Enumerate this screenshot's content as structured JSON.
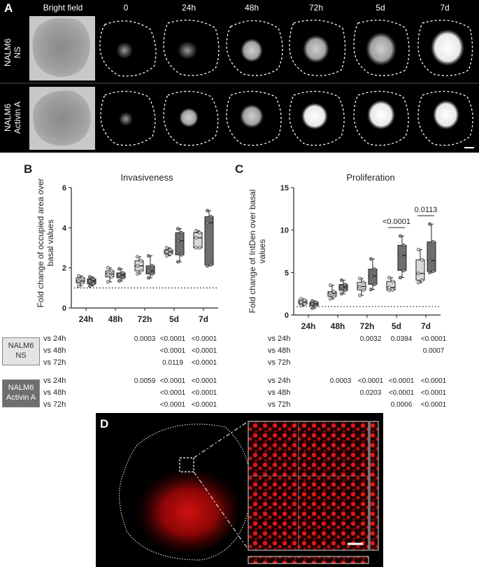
{
  "panelA": {
    "letter": "A",
    "columns": [
      "Bright field",
      "0",
      "24h",
      "48h",
      "72h",
      "5d",
      "7d"
    ],
    "rows": [
      {
        "line1": "NALM6",
        "line2": "NS"
      },
      {
        "line1": "NALM6",
        "line2": "Activin A"
      }
    ]
  },
  "panelB": {
    "letter": "B",
    "chart_data": {
      "type": "box",
      "title": "Invasiveness",
      "ylabel": "Fold change of occupied area over basal values",
      "categories": [
        "24h",
        "48h",
        "72h",
        "5d",
        "7d"
      ],
      "ylim": [
        0,
        6
      ],
      "yticks": [
        0,
        2,
        4,
        6
      ],
      "baseline": 1,
      "series": [
        {
          "name": "NALM6 NS",
          "color": "#d9d9d9",
          "boxes": [
            {
              "min": 1.1,
              "q1": 1.25,
              "median": 1.35,
              "q3": 1.5,
              "max": 1.6
            },
            {
              "min": 1.3,
              "q1": 1.55,
              "median": 1.7,
              "q3": 1.85,
              "max": 2.0
            },
            {
              "min": 1.7,
              "q1": 1.85,
              "median": 2.1,
              "q3": 2.35,
              "max": 2.55
            },
            {
              "min": 2.6,
              "q1": 2.7,
              "median": 2.8,
              "q3": 2.9,
              "max": 3.0
            },
            {
              "min": 3.0,
              "q1": 3.0,
              "median": 3.5,
              "q3": 3.75,
              "max": 3.85
            }
          ]
        },
        {
          "name": "NALM6 Activin A",
          "color": "#6e6e6e",
          "boxes": [
            {
              "min": 1.1,
              "q1": 1.2,
              "median": 1.35,
              "q3": 1.45,
              "max": 1.55
            },
            {
              "min": 1.35,
              "q1": 1.5,
              "median": 1.65,
              "q3": 1.75,
              "max": 1.95
            },
            {
              "min": 1.5,
              "q1": 1.7,
              "median": 1.85,
              "q3": 2.1,
              "max": 2.6
            },
            {
              "min": 2.3,
              "q1": 2.65,
              "median": 3.35,
              "q3": 3.75,
              "max": 3.95
            },
            {
              "min": 2.1,
              "q1": 2.15,
              "median": 4.25,
              "q3": 4.55,
              "max": 4.85
            }
          ]
        }
      ]
    }
  },
  "panelC": {
    "letter": "C",
    "chart_data": {
      "type": "box",
      "title": "Proliferation",
      "ylabel": "Fold change of IntDen over basal values",
      "categories": [
        "24h",
        "48h",
        "72h",
        "5d",
        "7d"
      ],
      "ylim": [
        0,
        15
      ],
      "yticks": [
        0,
        5,
        10,
        15
      ],
      "baseline": 1,
      "annotations": [
        {
          "category": "5d",
          "text": "<0.0001"
        },
        {
          "category": "7d",
          "text": "0.0113"
        }
      ],
      "series": [
        {
          "name": "NALM6 NS",
          "color": "#d9d9d9",
          "boxes": [
            {
              "min": 1.1,
              "q1": 1.3,
              "median": 1.5,
              "q3": 1.75,
              "max": 1.9
            },
            {
              "min": 1.9,
              "q1": 2.2,
              "median": 2.55,
              "q3": 2.75,
              "max": 3.5
            },
            {
              "min": 2.3,
              "q1": 2.95,
              "median": 3.35,
              "q3": 3.85,
              "max": 4.3
            },
            {
              "min": 2.9,
              "q1": 2.95,
              "median": 3.25,
              "q3": 3.95,
              "max": 4.4
            },
            {
              "min": 3.8,
              "q1": 4.1,
              "median": 4.9,
              "q3": 6.5,
              "max": 7.7
            }
          ]
        },
        {
          "name": "NALM6 Activin A",
          "color": "#6e6e6e",
          "boxes": [
            {
              "min": 0.8,
              "q1": 1.1,
              "median": 1.3,
              "q3": 1.5,
              "max": 1.65
            },
            {
              "min": 2.5,
              "q1": 2.9,
              "median": 3.3,
              "q3": 3.6,
              "max": 4.1
            },
            {
              "min": 3.0,
              "q1": 3.6,
              "median": 4.6,
              "q3": 5.4,
              "max": 6.6
            },
            {
              "min": 4.4,
              "q1": 5.25,
              "median": 7.0,
              "q3": 8.2,
              "max": 9.3
            },
            {
              "min": 5.0,
              "q1": 5.15,
              "median": 6.4,
              "q3": 8.6,
              "max": 10.7
            }
          ]
        }
      ]
    }
  },
  "stats": {
    "groups": [
      {
        "line1": "NALM6",
        "line2": "NS",
        "fill": "#e4e4e4",
        "text_color": "#333333",
        "rows": [
          {
            "label": "vs 24h",
            "b": [
              "",
              "",
              "0.0003",
              "<0.0001",
              "<0.0001"
            ],
            "c": [
              "",
              "",
              "0.0032",
              "0.0394",
              "<0.0001"
            ]
          },
          {
            "label": "vs 48h",
            "b": [
              "",
              "",
              "",
              "<0.0001",
              "<0.0001"
            ],
            "c": [
              "",
              "",
              "",
              "",
              "0.0007"
            ]
          },
          {
            "label": "vs 72h",
            "b": [
              "",
              "",
              "",
              "0.0119",
              "<0.0001"
            ],
            "c": [
              "",
              "",
              "",
              "",
              ""
            ]
          }
        ]
      },
      {
        "line1": "NALM6",
        "line2": "Activin A",
        "fill": "#6e6e6e",
        "text_color": "#ffffff",
        "rows": [
          {
            "label": "vs 24h",
            "b": [
              "",
              "",
              "0.0059",
              "<0.0001",
              "<0.0001"
            ],
            "c": [
              "",
              "0.0003",
              "<0.0001",
              "<0.0001",
              "<0.0001"
            ]
          },
          {
            "label": "vs 48h",
            "b": [
              "",
              "",
              "",
              "<0.0001",
              "<0.0001"
            ],
            "c": [
              "",
              "",
              "0.0203",
              "<0.0001",
              "<0.0001"
            ]
          },
          {
            "label": "vs 72h",
            "b": [
              "",
              "",
              "",
              "<0.0001",
              "<0.0001"
            ],
            "c": [
              "",
              "",
              "",
              "0.0006",
              "<0.0001"
            ]
          }
        ]
      }
    ]
  },
  "panelD": {
    "letter": "D"
  }
}
